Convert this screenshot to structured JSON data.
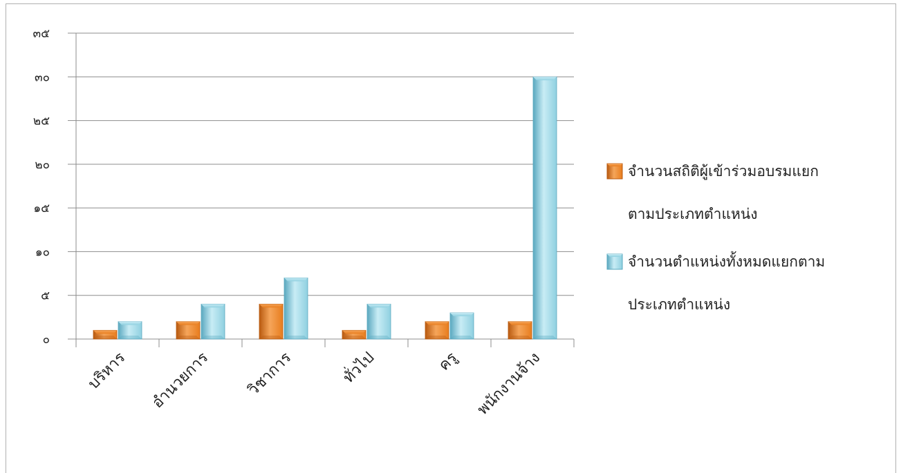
{
  "chart_data": {
    "type": "bar",
    "title": "",
    "xlabel": "",
    "ylabel": "",
    "categories": [
      "บริหาร",
      "อำนวยการ",
      "วิชาการ",
      "ทั่วไป",
      "ครู",
      "พนักงานจ้าง"
    ],
    "y_ticks": [
      "๐",
      "๕",
      "๑๐",
      "๑๕",
      "๒๐",
      "๒๕",
      "๓๐",
      "๓๕"
    ],
    "ylim": [
      0,
      35
    ],
    "grid": true,
    "legend_position": "right",
    "series": [
      {
        "name": "จำนวนสถิติผู้เข้าร่วมอบรมแยกตามประเภทตำแหน่ง",
        "legend_lines": [
          "จำนวนสถิติผู้เข้าร่วมอบรมแยก",
          "ตามประเภทตำแหน่ง"
        ],
        "values": [
          1,
          2,
          4,
          1,
          2,
          2
        ],
        "color": "#e87d1e",
        "color_dark": "#b85a10",
        "color_light": "#f5a55a"
      },
      {
        "name": "จำนวนตำแหน่งทั้งหมดแยกตามประเภทตำแหน่ง",
        "legend_lines": [
          "จำนวนตำแหน่งทั้งหมดแยกตาม",
          "ประเภทตำแหน่ง"
        ],
        "values": [
          2,
          4,
          7,
          4,
          3,
          30
        ],
        "color": "#8fd0e0",
        "color_dark": "#5aa8bf",
        "color_light": "#c8ecf5"
      }
    ]
  }
}
